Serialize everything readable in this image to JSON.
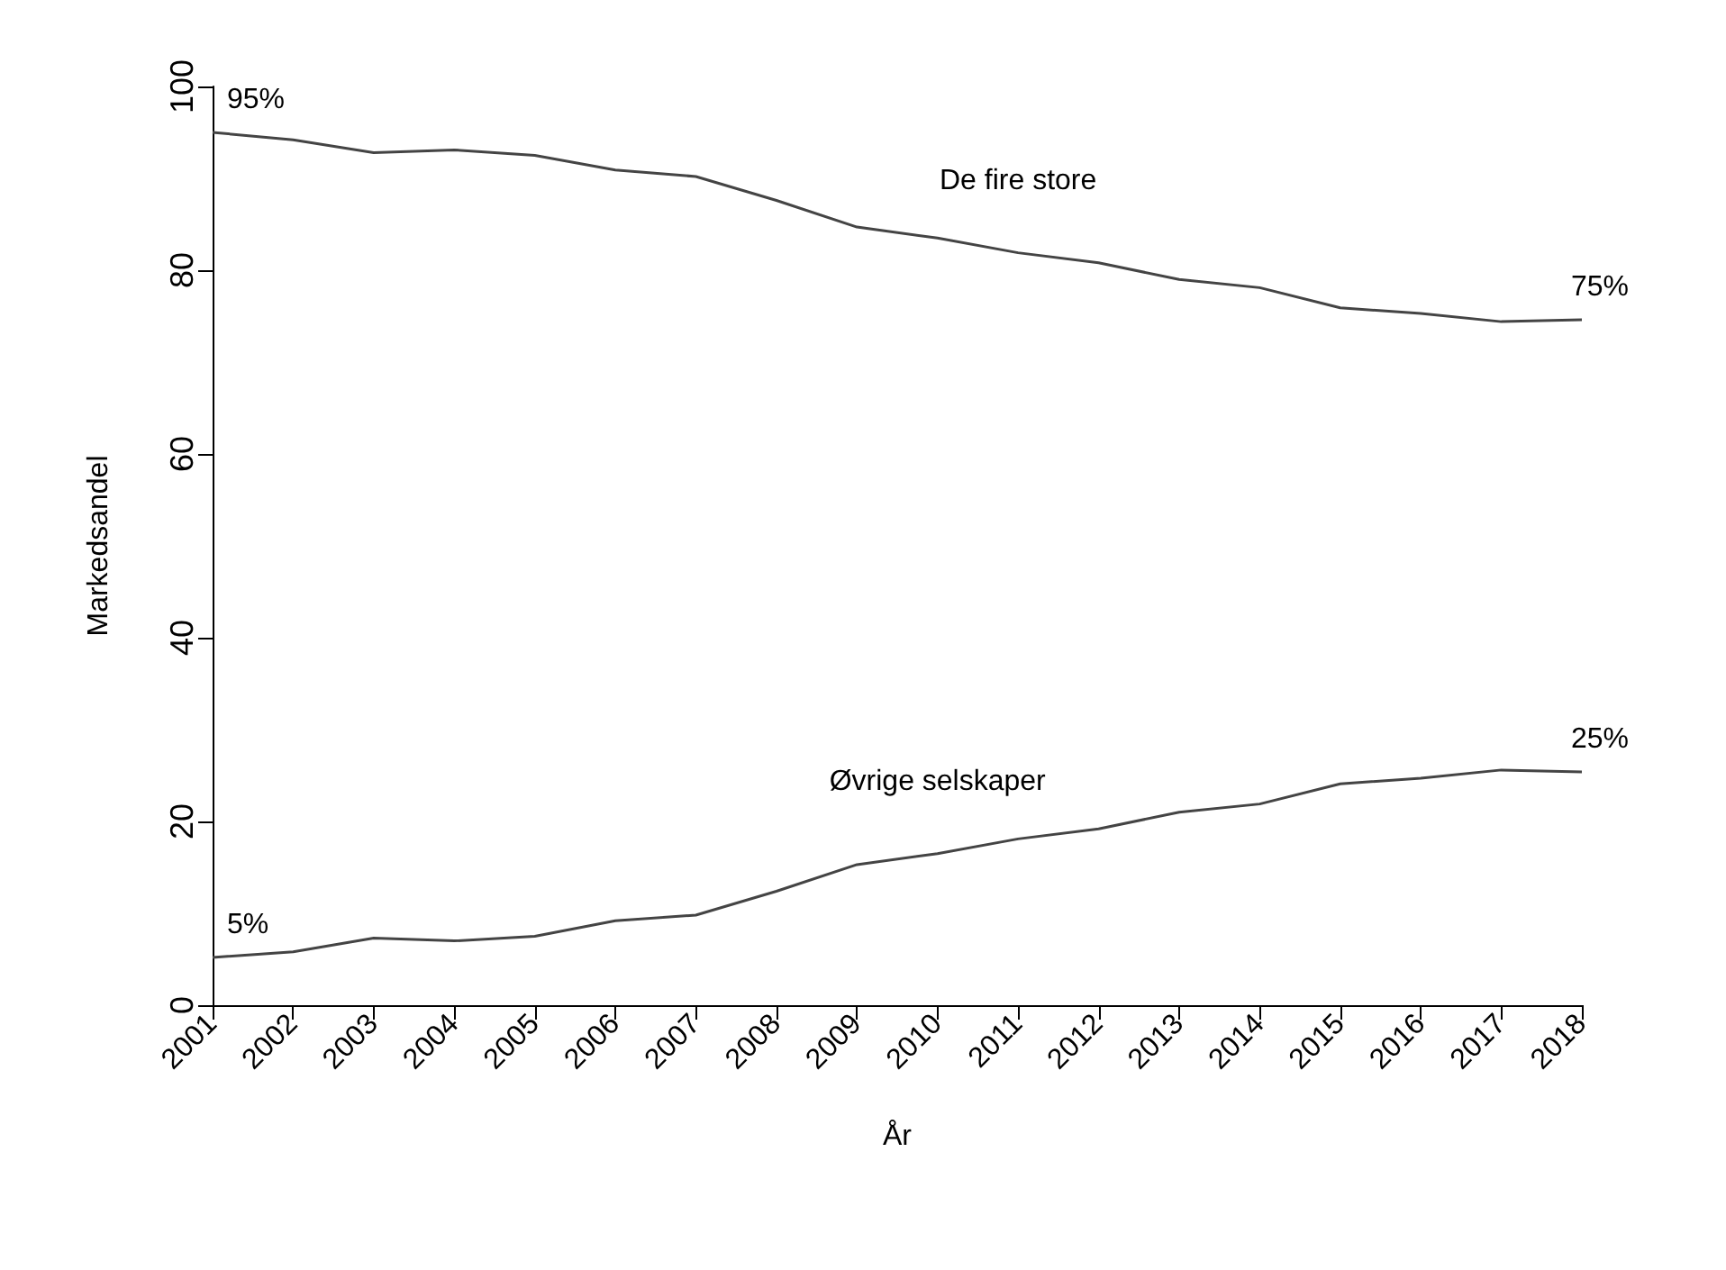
{
  "chart_data": {
    "type": "line",
    "xlabel": "År",
    "ylabel": "Markedsandel",
    "categories": [
      "2001",
      "2002",
      "2003",
      "2004",
      "2005",
      "2006",
      "2007",
      "2008",
      "2009",
      "2010",
      "2011",
      "2012",
      "2013",
      "2014",
      "2015",
      "2016",
      "2017",
      "2018"
    ],
    "series": [
      {
        "name": "De fire store",
        "color": "#444444",
        "values": [
          95,
          94.2,
          92.8,
          93.1,
          92.5,
          90.9,
          90.2,
          87.6,
          84.7,
          83.5,
          81.9,
          80.8,
          79,
          78.1,
          75.9,
          75.3,
          74.4,
          74.6
        ]
      },
      {
        "name": "Øvrige selskaper",
        "color": "#444444",
        "values": [
          5.2,
          5.8,
          7.3,
          7,
          7.5,
          9.2,
          9.8,
          12.4,
          15.3,
          16.5,
          18.1,
          19.2,
          21,
          21.9,
          24.1,
          24.7,
          25.6,
          25.4
        ]
      }
    ],
    "annotations": [
      {
        "text": "95%",
        "x": "2001",
        "y": 95
      },
      {
        "text": "75%",
        "x": "2018",
        "y": 74.6
      },
      {
        "text": "5%",
        "x": "2001",
        "y": 5.2
      },
      {
        "text": "25%",
        "x": "2018",
        "y": 25.4
      }
    ],
    "ylim": [
      0,
      100
    ],
    "yticks": [
      0,
      20,
      40,
      60,
      80,
      100
    ],
    "grid": false,
    "legend": false,
    "marker": "none",
    "line_style": "solid"
  }
}
